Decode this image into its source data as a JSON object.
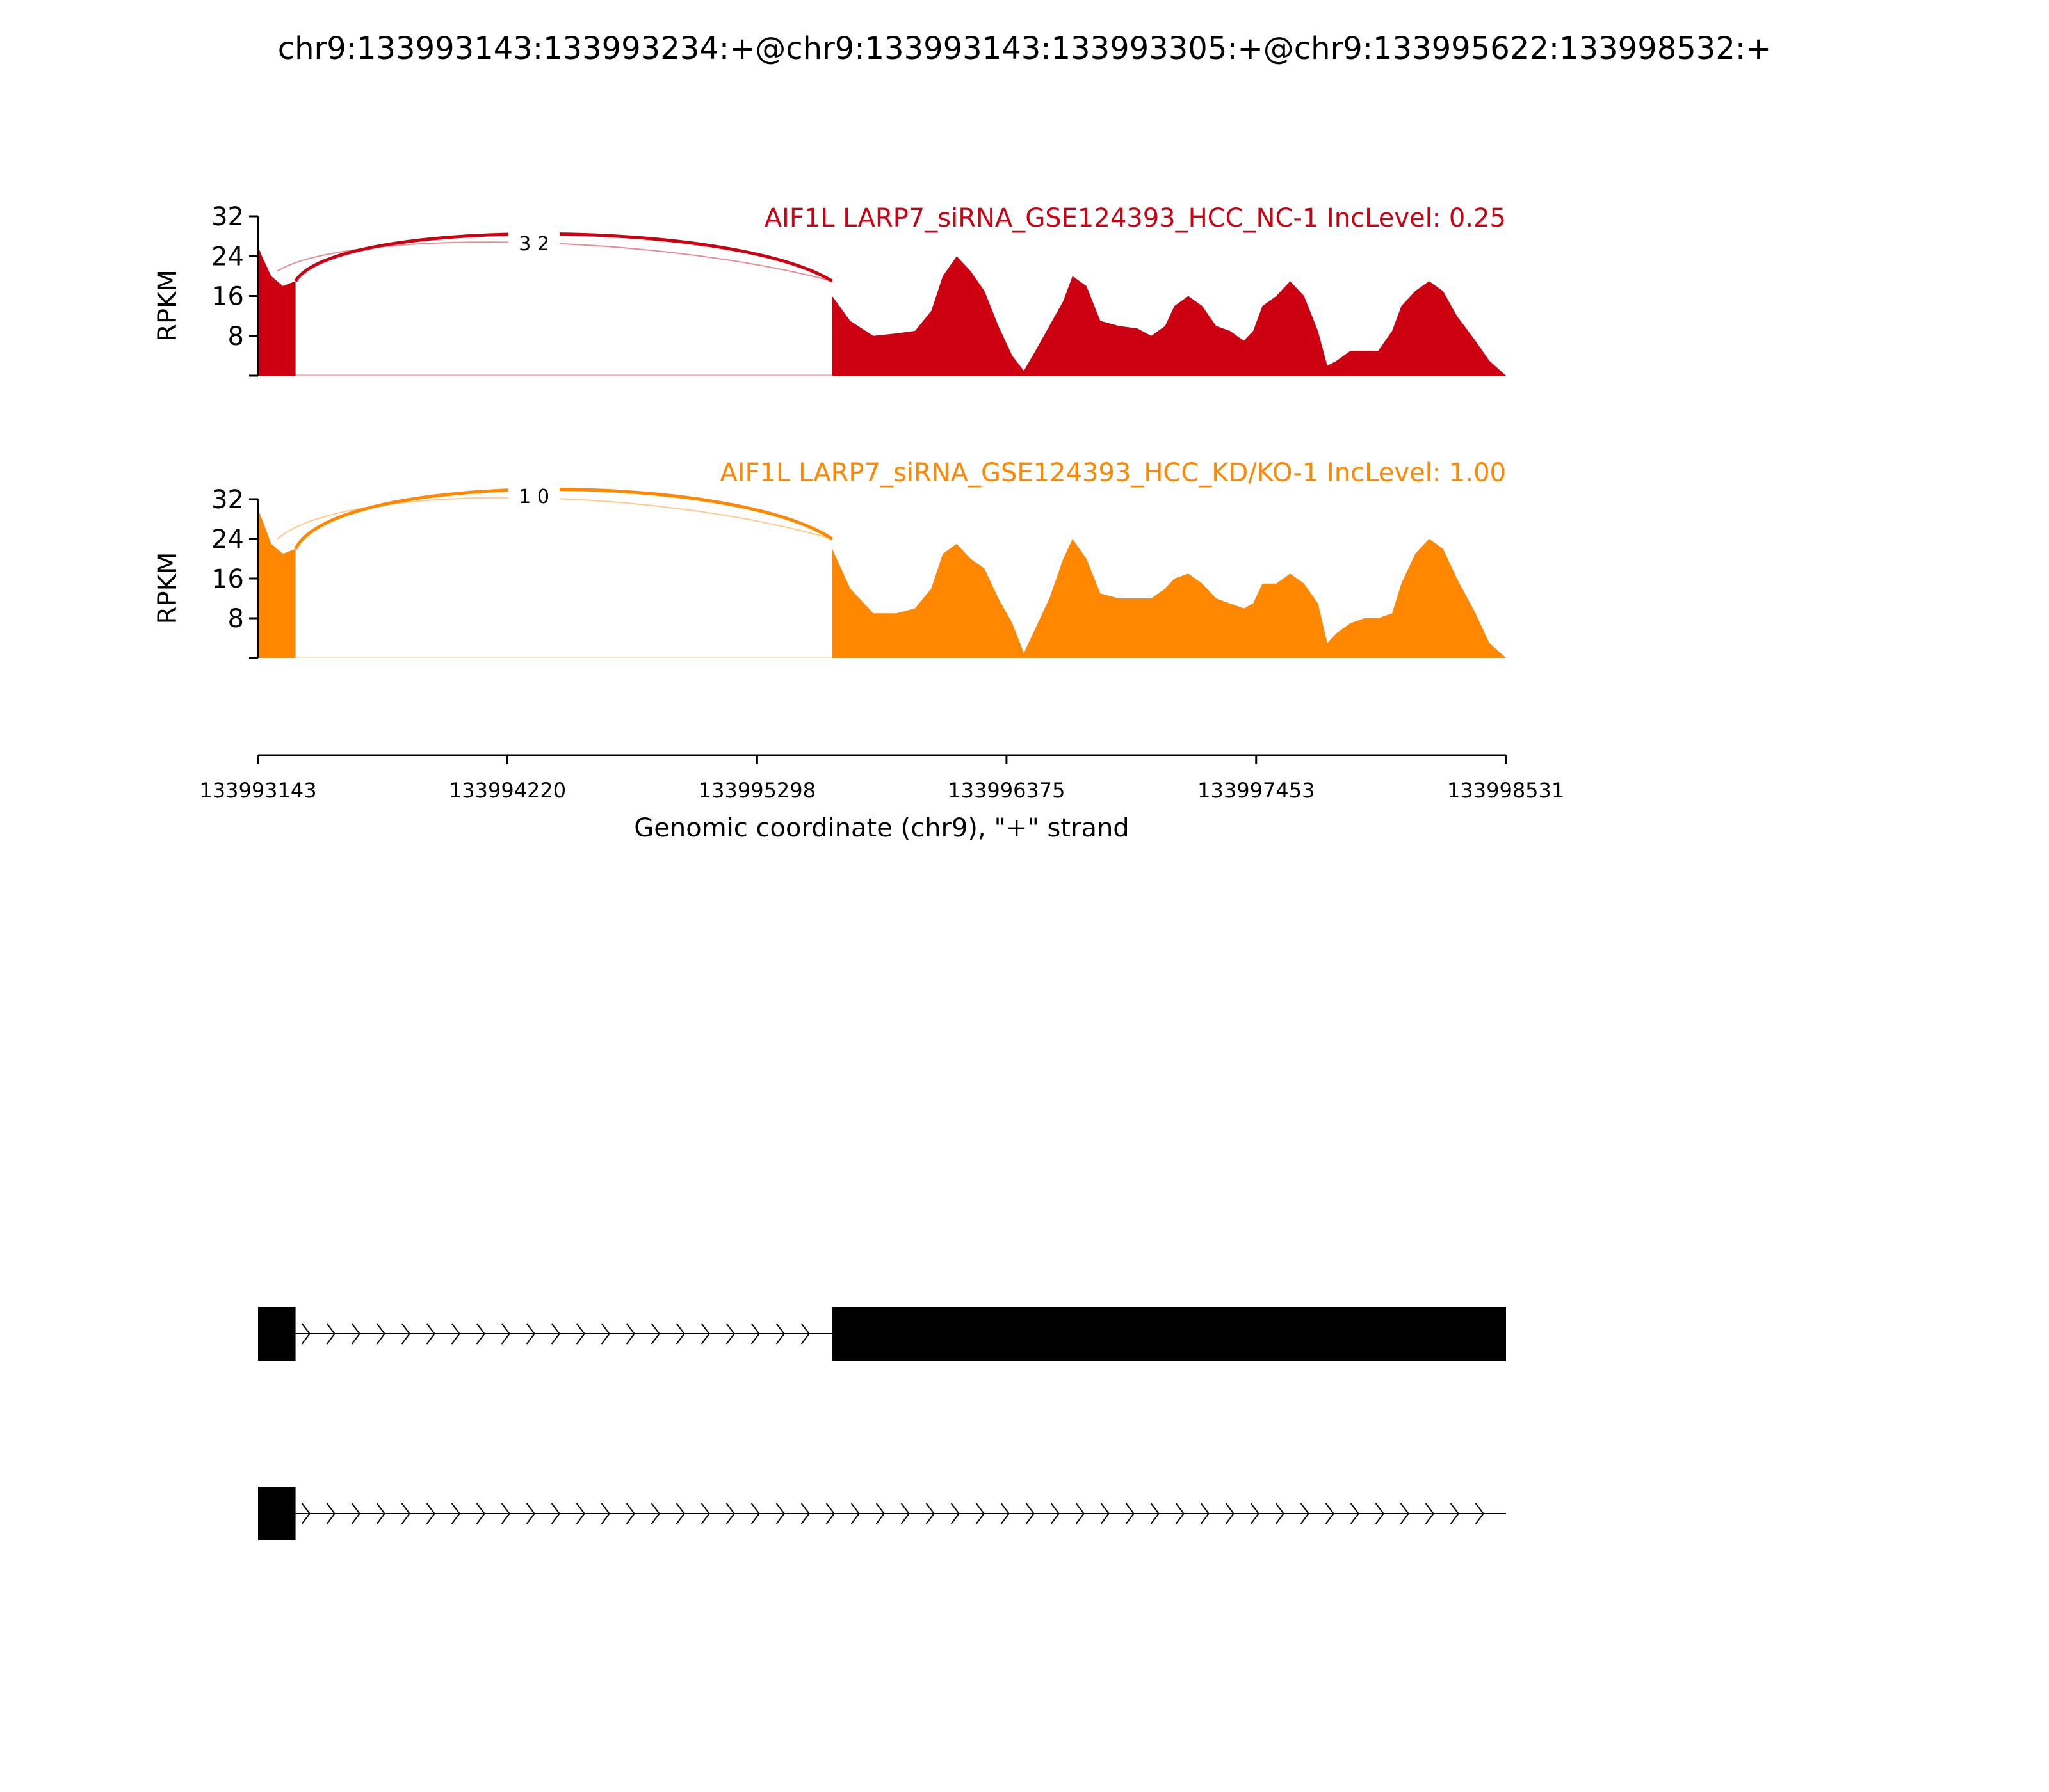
{
  "title": "chr9:133993143:133993234:+@chr9:133993143:133993305:+@chr9:133995622:133998532:+",
  "chart_data": {
    "type": "area",
    "title": "chr9:133993143:133993234:+@chr9:133993143:133993305:+@chr9:133995622:133998532:+",
    "xlabel": "Genomic coordinate (chr9), \"+\" strand",
    "x_ticks": [
      133993143,
      133994220,
      133995298,
      133996375,
      133997453,
      133998531
    ],
    "xlim": [
      133993143,
      133998532
    ],
    "ylabel": "RPKM",
    "y_ticks": [
      8,
      16,
      24,
      32
    ],
    "ylim": [
      0,
      32
    ],
    "tracks": [
      {
        "name": "AIF1L LARP7_siRNA_GSE124393_HCC_NC-1 IncLevel: 0.25",
        "color": "#cc0011",
        "junction_label": "3 2",
        "coverage": [
          [
            133993143,
            26
          ],
          [
            133993160,
            24
          ],
          [
            133993200,
            20
          ],
          [
            133993250,
            18
          ],
          [
            133993305,
            19
          ],
          [
            133995622,
            16
          ],
          [
            133995700,
            11
          ],
          [
            133995800,
            8
          ],
          [
            133995900,
            8.5
          ],
          [
            133995980,
            9
          ],
          [
            133996050,
            13
          ],
          [
            133996100,
            20
          ],
          [
            133996160,
            24
          ],
          [
            133996220,
            21
          ],
          [
            133996280,
            17
          ],
          [
            133996340,
            10
          ],
          [
            133996400,
            4
          ],
          [
            133996450,
            1
          ],
          [
            133996500,
            5
          ],
          [
            133996560,
            10
          ],
          [
            133996620,
            15
          ],
          [
            133996660,
            20
          ],
          [
            133996720,
            18
          ],
          [
            133996780,
            11
          ],
          [
            133996860,
            10
          ],
          [
            133996940,
            9.5
          ],
          [
            133997000,
            8
          ],
          [
            133997060,
            10
          ],
          [
            133997100,
            14
          ],
          [
            133997160,
            16
          ],
          [
            133997220,
            14
          ],
          [
            133997280,
            10
          ],
          [
            133997340,
            9
          ],
          [
            133997400,
            7
          ],
          [
            133997440,
            9
          ],
          [
            133997480,
            14
          ],
          [
            133997540,
            16
          ],
          [
            133997600,
            19
          ],
          [
            133997660,
            16
          ],
          [
            133997720,
            9
          ],
          [
            133997760,
            2
          ],
          [
            133997800,
            3
          ],
          [
            133997860,
            5
          ],
          [
            133997920,
            5
          ],
          [
            133997980,
            5
          ],
          [
            133998040,
            9
          ],
          [
            133998080,
            14
          ],
          [
            133998140,
            17
          ],
          [
            133998200,
            19
          ],
          [
            133998260,
            17
          ],
          [
            133998320,
            12
          ],
          [
            133998400,
            7
          ],
          [
            133998460,
            3
          ],
          [
            133998532,
            0
          ]
        ]
      },
      {
        "name": "AIF1L LARP7_siRNA_GSE124393_HCC_KD/KO-1 IncLevel: 1.00",
        "color": "#ff8800",
        "junction_label": "1 0",
        "coverage": [
          [
            133993143,
            30
          ],
          [
            133993160,
            28
          ],
          [
            133993200,
            23
          ],
          [
            133993250,
            21
          ],
          [
            133993305,
            22
          ],
          [
            133995622,
            22
          ],
          [
            133995700,
            14
          ],
          [
            133995800,
            9
          ],
          [
            133995900,
            9
          ],
          [
            133995980,
            10
          ],
          [
            133996050,
            14
          ],
          [
            133996100,
            21
          ],
          [
            133996160,
            23
          ],
          [
            133996220,
            20
          ],
          [
            133996280,
            18
          ],
          [
            133996340,
            12
          ],
          [
            133996400,
            7
          ],
          [
            133996450,
            1
          ],
          [
            133996500,
            6
          ],
          [
            133996560,
            12
          ],
          [
            133996620,
            20
          ],
          [
            133996660,
            24
          ],
          [
            133996720,
            20
          ],
          [
            133996780,
            13
          ],
          [
            133996860,
            12
          ],
          [
            133996940,
            12
          ],
          [
            133997000,
            12
          ],
          [
            133997060,
            14
          ],
          [
            133997100,
            16
          ],
          [
            133997160,
            17
          ],
          [
            133997220,
            15
          ],
          [
            133997280,
            12
          ],
          [
            133997340,
            11
          ],
          [
            133997400,
            10
          ],
          [
            133997440,
            11
          ],
          [
            133997480,
            15
          ],
          [
            133997540,
            15
          ],
          [
            133997600,
            17
          ],
          [
            133997660,
            15
          ],
          [
            133997720,
            11
          ],
          [
            133997760,
            3
          ],
          [
            133997800,
            5
          ],
          [
            133997860,
            7
          ],
          [
            133997920,
            8
          ],
          [
            133997980,
            8
          ],
          [
            133998040,
            9
          ],
          [
            133998080,
            15
          ],
          [
            133998140,
            21
          ],
          [
            133998200,
            24
          ],
          [
            133998260,
            22
          ],
          [
            133998320,
            16
          ],
          [
            133998400,
            9
          ],
          [
            133998460,
            3
          ],
          [
            133998532,
            0
          ]
        ]
      }
    ],
    "isoforms": [
      {
        "exons": [
          [
            133993143,
            133993305
          ],
          [
            133995622,
            133998532
          ]
        ]
      },
      {
        "exons": [
          [
            133993143,
            133993305
          ]
        ],
        "intron_to": 133998532
      }
    ]
  }
}
